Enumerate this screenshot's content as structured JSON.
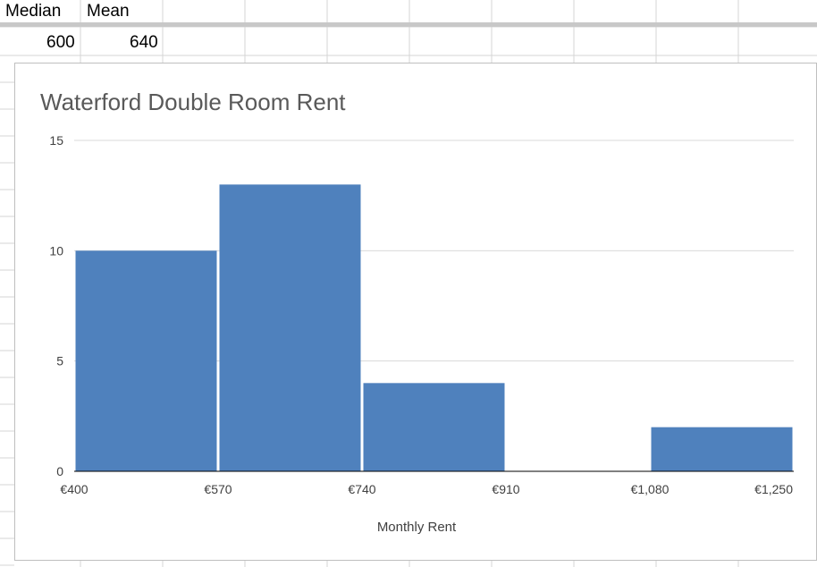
{
  "spreadsheet": {
    "headers": [
      "Median",
      "Mean"
    ],
    "values": [
      "600",
      "640"
    ]
  },
  "colors": {
    "bar_fill": "#4f81bd",
    "gridline": "#d9d9d9",
    "axis_line": "#000000",
    "axis_text": "#404040",
    "title_text": "#595959",
    "cell_grid": "#d4d4d4"
  },
  "chart_data": {
    "type": "bar",
    "subtype": "histogram",
    "title": "Waterford Double Room Rent",
    "xlabel": "Monthly Rent",
    "ylabel": "",
    "bin_edges": [
      400,
      570,
      740,
      910,
      1080,
      1250
    ],
    "x_tick_labels": [
      "€400",
      "€570",
      "€740",
      "€910",
      "€1,080",
      "€1,250"
    ],
    "values": [
      10,
      13,
      4,
      0,
      2
    ],
    "ylim": [
      0,
      15
    ],
    "y_ticks": [
      0,
      5,
      10,
      15
    ],
    "grid": true,
    "legend": "none"
  }
}
